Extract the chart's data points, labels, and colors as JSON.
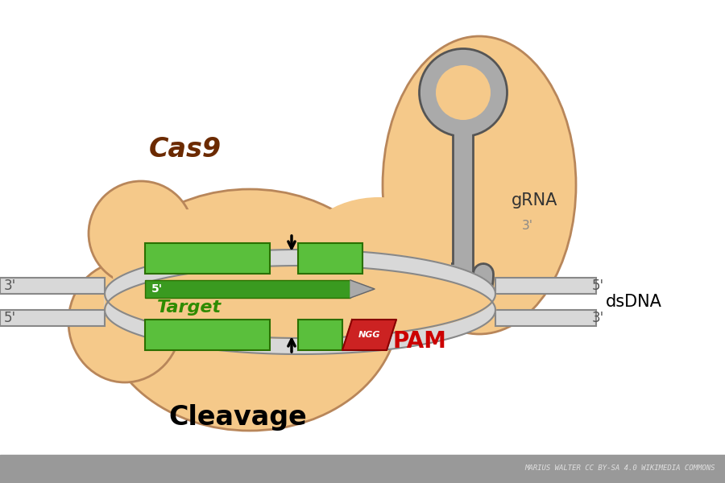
{
  "bg_color": "#ffffff",
  "footer_color": "#999999",
  "footer_text": "MARIUS WALTER CC BY-SA 4.0 WIKIMEDIA COMMONS",
  "footer_text_color": "#e0e0e0",
  "cas9_blob_color": "#f5c98a",
  "cas9_blob_edge": "#b8865a",
  "cas9_label": "Cas9",
  "cas9_label_color": "#6b2a00",
  "grna_label": "gRNA",
  "grna_label_color": "#444444",
  "grna_3prime": "3'",
  "dsdna_label": "dsDNA",
  "dsdna_label_color": "#000000",
  "target_label": "Target",
  "target_label_color": "#2e8b00",
  "five_prime_label": "5'",
  "pam_label": "PAM",
  "pam_label_color": "#cc0000",
  "ngg_label": "NGG",
  "cleavage_label": "Cleavage",
  "cleavage_color": "#000000",
  "green_color": "#5abf3c",
  "green_dark": "#3a9a20",
  "red_color": "#cc2222",
  "gray_strand_color": "#d8d8d8",
  "gray_strand_edge": "#888888",
  "grna_color": "#aaaaaa",
  "grna_edge": "#555555"
}
